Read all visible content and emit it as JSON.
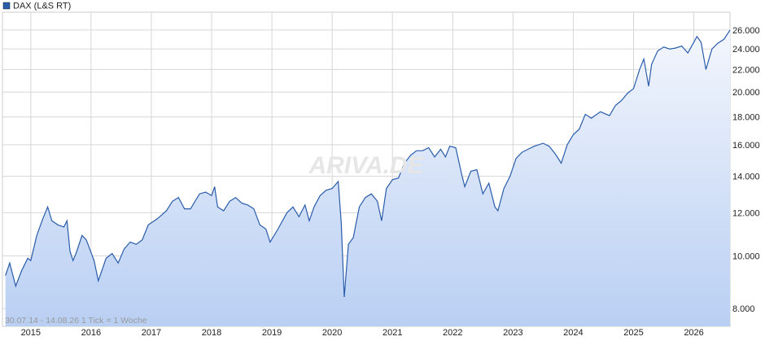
{
  "chart_data": {
    "type": "line",
    "legend": "DAX (L&S RT)",
    "footer": "30.07.14 - 14.08.26   1 Tick = 1 Woche",
    "watermark": "ARIVA.DE",
    "log_scale": true,
    "grid": true,
    "xlim": [
      2014.53,
      2026.6
    ],
    "xticks": [
      2015,
      2016,
      2017,
      2018,
      2019,
      2020,
      2021,
      2022,
      2023,
      2024,
      2025,
      2026
    ],
    "ylim": [
      7420,
      28040
    ],
    "yticks": [
      {
        "value": 8000,
        "label": "8.000"
      },
      {
        "value": 10000,
        "label": "10.000"
      },
      {
        "value": 12000,
        "label": "12.000"
      },
      {
        "value": 14000,
        "label": "14.000"
      },
      {
        "value": 16000,
        "label": "16.000"
      },
      {
        "value": 18000,
        "label": "18.000"
      },
      {
        "value": 20000,
        "label": "20.000"
      },
      {
        "value": 22000,
        "label": "22.000"
      },
      {
        "value": 24000,
        "label": "24.000"
      },
      {
        "value": 26000,
        "label": "26.000"
      }
    ],
    "series": [
      {
        "name": "DAX (L&S RT)",
        "color": "#2a5caa",
        "x": [
          2014.58,
          2014.65,
          2014.75,
          2014.85,
          2014.95,
          2015.0,
          2015.1,
          2015.2,
          2015.28,
          2015.35,
          2015.45,
          2015.55,
          2015.6,
          2015.65,
          2015.7,
          2015.75,
          2015.85,
          2015.92,
          2016.05,
          2016.12,
          2016.25,
          2016.35,
          2016.45,
          2016.55,
          2016.65,
          2016.75,
          2016.85,
          2016.95,
          2017.1,
          2017.25,
          2017.35,
          2017.45,
          2017.55,
          2017.65,
          2017.8,
          2017.9,
          2018.0,
          2018.05,
          2018.1,
          2018.2,
          2018.3,
          2018.4,
          2018.5,
          2018.6,
          2018.7,
          2018.8,
          2018.9,
          2018.97,
          2019.1,
          2019.25,
          2019.35,
          2019.45,
          2019.55,
          2019.62,
          2019.7,
          2019.8,
          2019.9,
          2020.0,
          2020.1,
          2020.15,
          2020.2,
          2020.27,
          2020.35,
          2020.45,
          2020.55,
          2020.65,
          2020.75,
          2020.82,
          2020.9,
          2021.0,
          2021.1,
          2021.2,
          2021.3,
          2021.4,
          2021.5,
          2021.6,
          2021.7,
          2021.8,
          2021.88,
          2021.95,
          2022.05,
          2022.15,
          2022.2,
          2022.3,
          2022.4,
          2022.5,
          2022.6,
          2022.7,
          2022.75,
          2022.85,
          2022.95,
          2023.05,
          2023.15,
          2023.25,
          2023.35,
          2023.5,
          2023.6,
          2023.7,
          2023.8,
          2023.9,
          2024.0,
          2024.1,
          2024.2,
          2024.3,
          2024.45,
          2024.6,
          2024.7,
          2024.8,
          2024.9,
          2025.0,
          2025.1,
          2025.17,
          2025.25,
          2025.3,
          2025.4,
          2025.5,
          2025.6,
          2025.7,
          2025.8,
          2025.9,
          2026.0,
          2026.05,
          2026.12,
          2026.2,
          2026.3,
          2026.4,
          2026.5,
          2026.6
        ],
        "values": [
          9200,
          9700,
          8800,
          9400,
          9900,
          9800,
          10900,
          11700,
          12300,
          11600,
          11400,
          11300,
          11600,
          10200,
          9800,
          10100,
          10900,
          10700,
          9800,
          9000,
          9900,
          10100,
          9700,
          10300,
          10600,
          10500,
          10700,
          11400,
          11700,
          12100,
          12600,
          12800,
          12200,
          12200,
          13000,
          13100,
          12900,
          13400,
          12300,
          12100,
          12600,
          12800,
          12500,
          12400,
          12200,
          11400,
          11200,
          10600,
          11200,
          12000,
          12300,
          11800,
          12400,
          11600,
          12300,
          12900,
          13200,
          13300,
          13700,
          11500,
          8400,
          10500,
          10800,
          12300,
          12800,
          13000,
          12600,
          11600,
          13300,
          13800,
          13900,
          14800,
          15300,
          15600,
          15600,
          15800,
          15200,
          15700,
          15200,
          15900,
          15800,
          14100,
          13400,
          14300,
          14400,
          13000,
          13600,
          12300,
          12100,
          13300,
          14000,
          15100,
          15500,
          15700,
          15900,
          16100,
          15900,
          15400,
          14800,
          16000,
          16700,
          17100,
          18200,
          17900,
          18400,
          18100,
          18900,
          19300,
          19900,
          20300,
          22000,
          23000,
          20500,
          22500,
          23800,
          24200,
          24000,
          24100,
          24300,
          23600,
          24700,
          25300,
          24700,
          22000,
          24000,
          24600,
          25000,
          26000
        ]
      }
    ]
  }
}
